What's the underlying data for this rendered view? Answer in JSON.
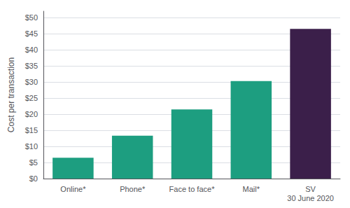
{
  "chart_data": {
    "type": "bar",
    "categories": [
      "Online*",
      "Phone*",
      "Face to face*",
      "Mail*",
      "SV\n30 June 2020"
    ],
    "values": [
      6.5,
      13.3,
      21.5,
      30.3,
      46.5
    ],
    "colors": [
      "#1d9e80",
      "#1d9e80",
      "#1d9e80",
      "#1d9e80",
      "#3b1f4a"
    ],
    "ylabel": "Cost per transaction",
    "ylim": [
      0,
      52
    ],
    "yticks": [
      {
        "value": 0,
        "label": "$0"
      },
      {
        "value": 5,
        "label": "$5"
      },
      {
        "value": 10,
        "label": "$10"
      },
      {
        "value": 15,
        "label": "$15"
      },
      {
        "value": 20,
        "label": "$20"
      },
      {
        "value": 25,
        "label": "$25"
      },
      {
        "value": 30,
        "label": "$30"
      },
      {
        "value": 35,
        "label": "$35"
      },
      {
        "value": 40,
        "label": "$40"
      },
      {
        "value": 45,
        "label": "$45"
      },
      {
        "value": 50,
        "label": "$50"
      }
    ],
    "grid": true
  }
}
